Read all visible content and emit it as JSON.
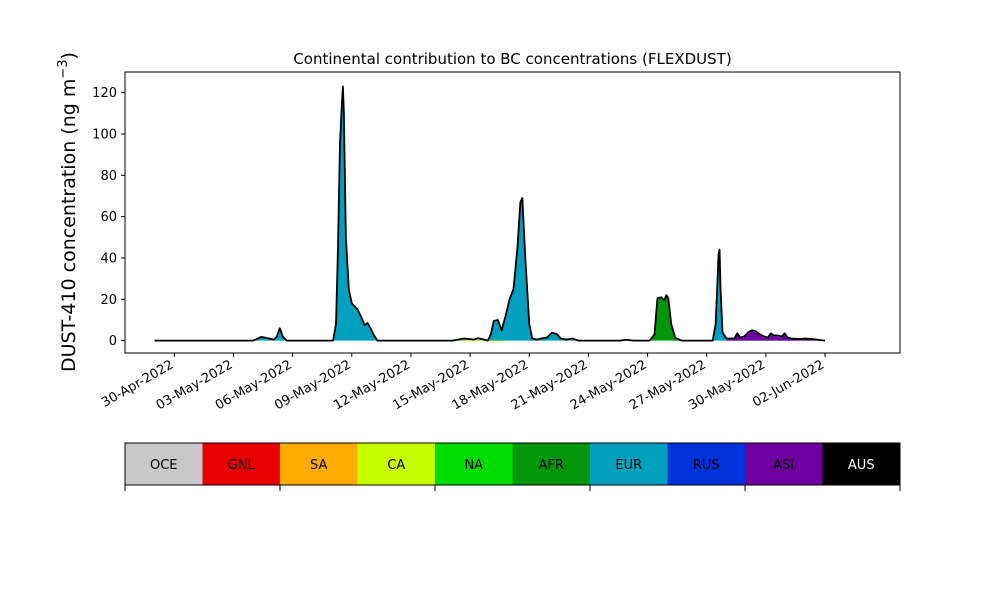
{
  "chart_data": {
    "type": "area",
    "title": "Continental contribution to BC concentrations (FLEXDUST)",
    "ylabel_prefix": "DUST-410 concentration (ng m",
    "ylabel_exp": "−3",
    "ylabel_suffix": ")",
    "xlabel": "",
    "ylim": [
      -6,
      130
    ],
    "yticks": [
      0,
      20,
      40,
      60,
      80,
      100,
      120
    ],
    "xlim": [
      -2.5,
      36.8
    ],
    "xtick_positions": [
      0,
      3,
      6,
      9,
      12,
      15,
      18,
      21,
      24,
      27,
      30,
      33
    ],
    "xtick_labels": [
      "30-Apr-2022",
      "03-May-2022",
      "06-May-2022",
      "09-May-2022",
      "12-May-2022",
      "15-May-2022",
      "18-May-2022",
      "21-May-2022",
      "24-May-2022",
      "27-May-2022",
      "30-May-2022",
      "02-Jun-2022"
    ],
    "x_unit": "days since 30-Apr-2022",
    "grid": false,
    "series": [
      {
        "name": "EUR",
        "color": "#00a0be",
        "points": [
          [
            1,
            0
          ],
          [
            4.0,
            0
          ],
          [
            4.4,
            1.8
          ],
          [
            4.8,
            1.0
          ],
          [
            5.05,
            0.5
          ],
          [
            5.2,
            2
          ],
          [
            5.35,
            6
          ],
          [
            5.5,
            2
          ],
          [
            5.7,
            0
          ],
          [
            7.5,
            0
          ],
          [
            7.8,
            0
          ],
          [
            8.05,
            0
          ],
          [
            8.2,
            8
          ],
          [
            8.3,
            45
          ],
          [
            8.4,
            95
          ],
          [
            8.5,
            115
          ],
          [
            8.55,
            122
          ],
          [
            8.6,
            108
          ],
          [
            8.7,
            50
          ],
          [
            8.85,
            25
          ],
          [
            9.0,
            18
          ],
          [
            9.3,
            15
          ],
          [
            9.5,
            11
          ],
          [
            9.65,
            7.5
          ],
          [
            9.8,
            8.5
          ],
          [
            9.95,
            6
          ],
          [
            10.1,
            3
          ],
          [
            10.3,
            0
          ],
          [
            13.5,
            0
          ],
          [
            14.1,
            0
          ],
          [
            14.7,
            0.5
          ],
          [
            15.2,
            0.5
          ],
          [
            15.4,
            1.0
          ],
          [
            15.8,
            0.3
          ],
          [
            15.9,
            0
          ],
          [
            16.05,
            3
          ],
          [
            16.2,
            9
          ],
          [
            16.4,
            9.5
          ],
          [
            16.6,
            5
          ],
          [
            16.8,
            12
          ],
          [
            17.0,
            20
          ],
          [
            17.2,
            25
          ],
          [
            17.4,
            45
          ],
          [
            17.55,
            66
          ],
          [
            17.65,
            68
          ],
          [
            17.8,
            40
          ],
          [
            18.0,
            8
          ],
          [
            18.15,
            1
          ],
          [
            18.4,
            0.5
          ],
          [
            18.6,
            1
          ],
          [
            18.9,
            1.5
          ],
          [
            19.15,
            3.5
          ],
          [
            19.4,
            3
          ],
          [
            19.6,
            1
          ],
          [
            19.9,
            0.5
          ],
          [
            20.2,
            1
          ],
          [
            20.5,
            0
          ],
          [
            22.6,
            0
          ],
          [
            22.9,
            0.4
          ],
          [
            23.3,
            0
          ],
          [
            26.0,
            0
          ],
          [
            26.9,
            0
          ],
          [
            27.3,
            0
          ],
          [
            27.45,
            8
          ],
          [
            27.55,
            30
          ],
          [
            27.6,
            40
          ],
          [
            27.65,
            42
          ],
          [
            27.7,
            25
          ],
          [
            27.8,
            4
          ],
          [
            28.0,
            1
          ],
          [
            28.2,
            0.5
          ],
          [
            28.8,
            0.5
          ],
          [
            29.5,
            0.5
          ],
          [
            30.0,
            0.5
          ],
          [
            30.4,
            0
          ],
          [
            31.5,
            0.3
          ],
          [
            32.2,
            0.5
          ],
          [
            32.6,
            0.3
          ],
          [
            33.0,
            0
          ]
        ]
      },
      {
        "name": "AFR",
        "color": "#00960a",
        "points": [
          [
            23.6,
            0
          ],
          [
            24.1,
            0
          ],
          [
            24.35,
            3
          ],
          [
            24.5,
            20
          ],
          [
            24.7,
            21
          ],
          [
            24.85,
            19
          ],
          [
            24.95,
            22
          ],
          [
            25.05,
            20
          ],
          [
            25.2,
            8
          ],
          [
            25.4,
            1.5
          ],
          [
            25.7,
            0
          ]
        ]
      },
      {
        "name": "NA",
        "color": "#00dc00",
        "points": [
          [
            14.0,
            0
          ],
          [
            14.7,
            0.6
          ],
          [
            15.3,
            0.8
          ],
          [
            15.8,
            0.2
          ],
          [
            16.5,
            0.5
          ],
          [
            17.0,
            0
          ]
        ]
      },
      {
        "name": "CA",
        "color": "#c8ff00",
        "points": [
          [
            14.2,
            0
          ],
          [
            14.9,
            0.5
          ],
          [
            15.5,
            0.5
          ],
          [
            16.1,
            0
          ]
        ]
      },
      {
        "name": "ASI",
        "color": "#6e00a0",
        "points": [
          [
            27.9,
            0
          ],
          [
            28.2,
            0.5
          ],
          [
            28.4,
            0.5
          ],
          [
            28.55,
            3
          ],
          [
            28.7,
            1
          ],
          [
            28.9,
            1.5
          ],
          [
            29.1,
            3.5
          ],
          [
            29.3,
            4.5
          ],
          [
            29.5,
            4
          ],
          [
            29.7,
            2.5
          ],
          [
            29.9,
            1.5
          ],
          [
            30.1,
            1
          ],
          [
            30.25,
            3
          ],
          [
            30.4,
            2
          ],
          [
            30.6,
            2
          ],
          [
            30.8,
            1.5
          ],
          [
            30.95,
            3
          ],
          [
            31.1,
            1
          ],
          [
            31.3,
            0.8
          ],
          [
            31.6,
            0.5
          ],
          [
            31.8,
            0.5
          ],
          [
            32.0,
            0.8
          ],
          [
            32.3,
            0.5
          ],
          [
            32.5,
            0.5
          ],
          [
            32.7,
            0
          ]
        ]
      }
    ],
    "total_line": {
      "color": "#000000",
      "points": [
        [
          -1.0,
          0
        ],
        [
          1.0,
          0
        ],
        [
          4.0,
          0
        ],
        [
          4.4,
          1.8
        ],
        [
          4.8,
          1.0
        ],
        [
          5.05,
          0.5
        ],
        [
          5.2,
          2
        ],
        [
          5.35,
          6
        ],
        [
          5.5,
          2
        ],
        [
          5.7,
          0
        ],
        [
          7.5,
          0
        ],
        [
          7.8,
          0
        ],
        [
          8.05,
          0
        ],
        [
          8.2,
          8
        ],
        [
          8.3,
          45
        ],
        [
          8.4,
          95
        ],
        [
          8.5,
          115
        ],
        [
          8.55,
          123
        ],
        [
          8.6,
          110
        ],
        [
          8.7,
          50
        ],
        [
          8.85,
          25
        ],
        [
          9.0,
          18
        ],
        [
          9.3,
          15
        ],
        [
          9.5,
          11
        ],
        [
          9.65,
          7.5
        ],
        [
          9.8,
          8.5
        ],
        [
          9.95,
          6
        ],
        [
          10.1,
          3
        ],
        [
          10.3,
          0
        ],
        [
          13.5,
          0
        ],
        [
          14.1,
          0
        ],
        [
          14.7,
          1.0
        ],
        [
          15.2,
          0.5
        ],
        [
          15.4,
          1.2
        ],
        [
          15.8,
          0.3
        ],
        [
          15.9,
          0
        ],
        [
          16.05,
          3
        ],
        [
          16.2,
          9.5
        ],
        [
          16.4,
          10
        ],
        [
          16.6,
          5
        ],
        [
          16.8,
          12
        ],
        [
          17.0,
          20
        ],
        [
          17.2,
          25
        ],
        [
          17.4,
          45
        ],
        [
          17.55,
          67
        ],
        [
          17.65,
          69
        ],
        [
          17.8,
          40
        ],
        [
          18.0,
          8
        ],
        [
          18.15,
          1
        ],
        [
          18.4,
          0.5
        ],
        [
          18.6,
          1
        ],
        [
          18.9,
          1.5
        ],
        [
          19.15,
          3.8
        ],
        [
          19.4,
          3.2
        ],
        [
          19.6,
          1
        ],
        [
          19.9,
          0.5
        ],
        [
          20.2,
          1
        ],
        [
          20.5,
          0
        ],
        [
          22.6,
          0
        ],
        [
          22.9,
          0.4
        ],
        [
          23.3,
          0
        ],
        [
          24.1,
          0
        ],
        [
          24.35,
          3
        ],
        [
          24.5,
          20.5
        ],
        [
          24.7,
          21
        ],
        [
          24.85,
          19.5
        ],
        [
          24.95,
          22
        ],
        [
          25.05,
          20.5
        ],
        [
          25.2,
          8
        ],
        [
          25.4,
          1.5
        ],
        [
          25.7,
          0
        ],
        [
          27.3,
          0
        ],
        [
          27.45,
          8
        ],
        [
          27.55,
          30
        ],
        [
          27.6,
          42
        ],
        [
          27.65,
          44
        ],
        [
          27.7,
          25
        ],
        [
          27.8,
          4
        ],
        [
          28.0,
          1
        ],
        [
          28.2,
          1
        ],
        [
          28.4,
          1
        ],
        [
          28.55,
          3.5
        ],
        [
          28.7,
          1.5
        ],
        [
          28.9,
          2
        ],
        [
          29.1,
          4
        ],
        [
          29.3,
          5
        ],
        [
          29.5,
          4.5
        ],
        [
          29.7,
          3
        ],
        [
          29.9,
          2
        ],
        [
          30.1,
          1.5
        ],
        [
          30.25,
          3.5
        ],
        [
          30.4,
          2.5
        ],
        [
          30.6,
          2.5
        ],
        [
          30.8,
          2
        ],
        [
          30.95,
          3.5
        ],
        [
          31.1,
          1.5
        ],
        [
          31.3,
          1
        ],
        [
          31.6,
          0.8
        ],
        [
          31.8,
          0.8
        ],
        [
          32.0,
          1
        ],
        [
          32.3,
          0.8
        ],
        [
          32.5,
          0.6
        ],
        [
          32.7,
          0.3
        ],
        [
          33.0,
          0
        ]
      ]
    }
  },
  "legend": {
    "items": [
      {
        "label": "OCE",
        "color": "#c8c8c8",
        "text_color": "#000000"
      },
      {
        "label": "GNL",
        "color": "#e60000",
        "text_color": "#000000"
      },
      {
        "label": "SA",
        "color": "#ffaa00",
        "text_color": "#000000"
      },
      {
        "label": "CA",
        "color": "#c8ff00",
        "text_color": "#000000"
      },
      {
        "label": "NA",
        "color": "#00dc00",
        "text_color": "#000000"
      },
      {
        "label": "AFR",
        "color": "#00960a",
        "text_color": "#000000"
      },
      {
        "label": "EUR",
        "color": "#00a0be",
        "text_color": "#000000"
      },
      {
        "label": "RUS",
        "color": "#0032dc",
        "text_color": "#000000"
      },
      {
        "label": "ASI",
        "color": "#6e00a0",
        "text_color": "#000000"
      },
      {
        "label": "AUS",
        "color": "#000000",
        "text_color": "#ffffff"
      }
    ]
  }
}
